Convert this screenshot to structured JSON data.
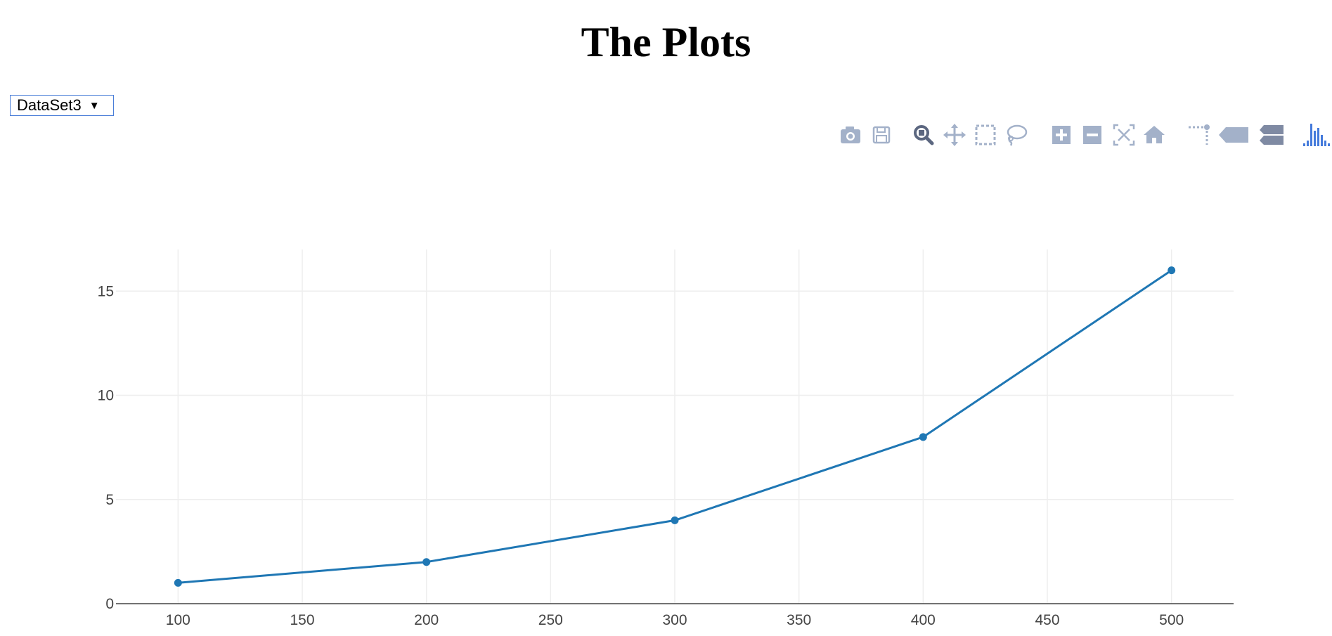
{
  "page": {
    "title": "The Plots"
  },
  "dataset_select": {
    "selected": "DataSet3",
    "arrow": "▼"
  },
  "modebar": {
    "buttons": [
      {
        "name": "camera-icon",
        "color": "#a3b1c9"
      },
      {
        "name": "save-icon",
        "color": "#a3b1c9"
      },
      {
        "name": "zoom-icon",
        "color": "#5c6780"
      },
      {
        "name": "pan-icon",
        "color": "#a3b1c9"
      },
      {
        "name": "box-select-icon",
        "color": "#a3b1c9"
      },
      {
        "name": "lasso-select-icon",
        "color": "#a3b1c9"
      },
      {
        "name": "zoom-in-icon",
        "color": "#a3b1c9"
      },
      {
        "name": "zoom-out-icon",
        "color": "#a3b1c9"
      },
      {
        "name": "autoscale-icon",
        "color": "#a3b1c9"
      },
      {
        "name": "reset-axes-icon",
        "color": "#a3b1c9"
      },
      {
        "name": "spike-lines-icon",
        "color": "#a3b1c9"
      },
      {
        "name": "hover-closest-icon",
        "color": "#a3b1c9"
      },
      {
        "name": "hover-compare-icon",
        "color": "#7f8aa3"
      },
      {
        "name": "plotly-logo-icon",
        "color": "#447adb"
      }
    ]
  },
  "chart_data": {
    "type": "line",
    "x": [
      100,
      200,
      300,
      400,
      500
    ],
    "y": [
      1,
      2,
      4,
      8,
      16
    ],
    "xlim": [
      75,
      525
    ],
    "ylim": [
      0,
      17
    ],
    "xticks": [
      100,
      150,
      200,
      250,
      300,
      350,
      400,
      450,
      500
    ],
    "yticks": [
      0,
      5,
      10,
      15
    ],
    "grid": true,
    "line_color": "#1f77b4",
    "grid_color": "#eeeeee"
  }
}
